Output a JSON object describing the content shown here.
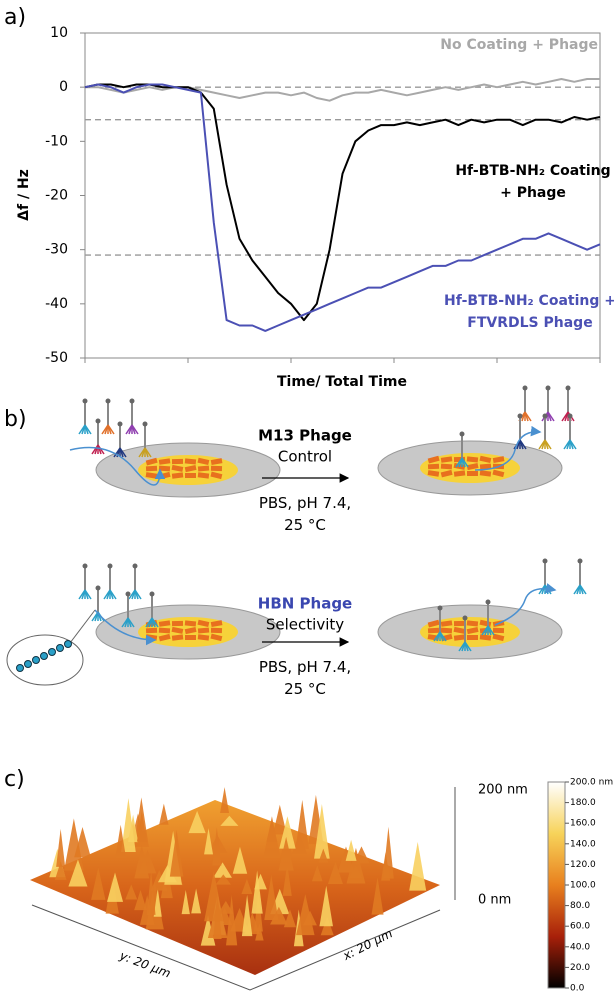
{
  "panel_labels": [
    "a)",
    "b)",
    "c)"
  ],
  "chart_data": {
    "type": "line",
    "y_label": "Δf / Hz",
    "x_label": "Time/ Total Time",
    "xlim": [
      0,
      1
    ],
    "ylim": [
      -50,
      10
    ],
    "yticks": [
      10,
      0,
      -10,
      -20,
      -30,
      -40,
      -50
    ],
    "reference_lines": [
      0,
      -6,
      -31
    ],
    "x": [
      0,
      0.025,
      0.05,
      0.075,
      0.1,
      0.125,
      0.15,
      0.175,
      0.2,
      0.225,
      0.25,
      0.275,
      0.3,
      0.325,
      0.35,
      0.375,
      0.4,
      0.425,
      0.45,
      0.475,
      0.5,
      0.525,
      0.55,
      0.575,
      0.6,
      0.625,
      0.65,
      0.675,
      0.7,
      0.725,
      0.75,
      0.775,
      0.8,
      0.825,
      0.85,
      0.875,
      0.9,
      0.925,
      0.95,
      0.975,
      1
    ],
    "series": [
      {
        "name": "No Coating + Phage",
        "color": "#a8a8a8",
        "values": [
          0,
          0,
          -0.5,
          -1,
          -0.5,
          0,
          -0.5,
          0,
          0,
          -0.5,
          -1,
          -1.5,
          -2,
          -1.5,
          -1,
          -1,
          -1.5,
          -1,
          -2,
          -2.5,
          -1.5,
          -1,
          -1,
          -0.5,
          -1,
          -1.5,
          -1,
          -0.5,
          0,
          -0.5,
          0,
          0.5,
          0,
          0.5,
          1,
          0.5,
          1,
          1.5,
          1,
          1.5,
          1.5
        ]
      },
      {
        "name": "Hf-BTB-NH₂ Coating + Phage",
        "color": "#000000",
        "values": [
          0,
          0.5,
          0.5,
          0,
          0.5,
          0.5,
          0,
          0,
          0,
          -1,
          -4,
          -18,
          -28,
          -32,
          -35,
          -38,
          -40,
          -43,
          -40,
          -30,
          -16,
          -10,
          -8,
          -7,
          -7,
          -6.5,
          -7,
          -6.5,
          -6,
          -7,
          -6,
          -6.5,
          -6,
          -6,
          -7,
          -6,
          -6,
          -6.5,
          -5.5,
          -6,
          -5.5
        ]
      },
      {
        "name": "Hf-BTB-NH₂ Coating + FTVRDLS Phage",
        "color": "#4b50b4",
        "values": [
          0,
          0.5,
          0,
          -1,
          0,
          0.5,
          0.5,
          0,
          -0.5,
          -1,
          -25,
          -43,
          -44,
          -44,
          -45,
          -44,
          -43,
          -42,
          -41,
          -40,
          -39,
          -38,
          -37,
          -37,
          -36,
          -35,
          -34,
          -33,
          -33,
          -32,
          -32,
          -31,
          -30,
          -29,
          -28,
          -28,
          -27,
          -28,
          -29,
          -30,
          -29
        ]
      }
    ]
  },
  "panel_b": {
    "rows": [
      {
        "title": "M13 Phage",
        "subtitle": "Control",
        "conditions": "PBS, pH 7.4, 25 °C"
      },
      {
        "title": "HBN Phage",
        "subtitle": "Selectivity",
        "conditions": "PBS, pH 7.4, 25 °C"
      }
    ]
  },
  "panel_c": {
    "scale_top": "200 nm",
    "scale_bottom": "0 nm",
    "y_axis": "y: 20 µm",
    "x_axis": "x: 20 µm",
    "colorbar_labels": [
      "200.0 nm",
      "180.0",
      "160.0",
      "140.0",
      "120.0",
      "100.0",
      "80.0",
      "60.0",
      "40.0",
      "20.0",
      "0.0"
    ]
  }
}
